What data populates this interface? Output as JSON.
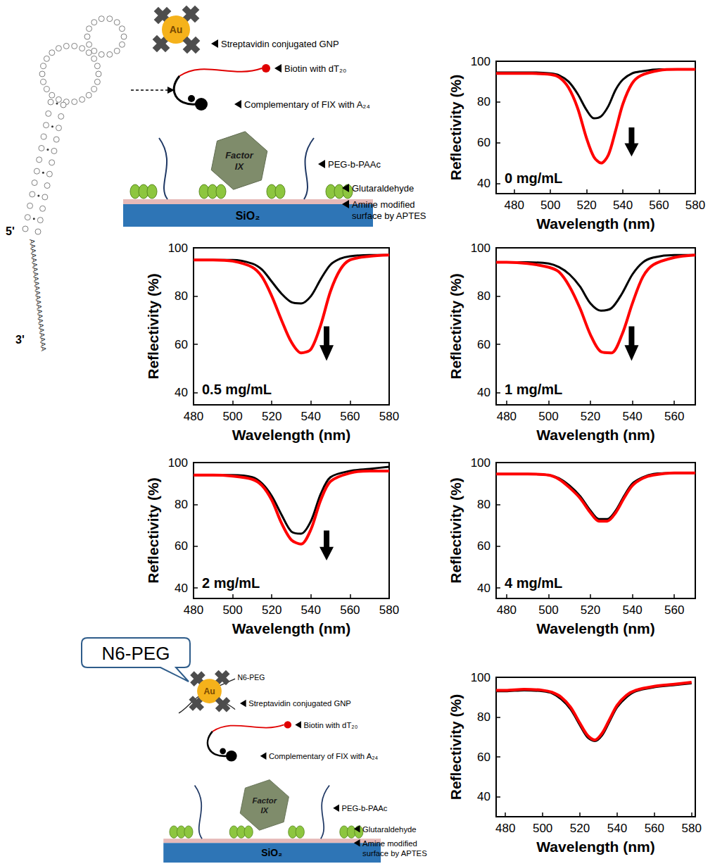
{
  "chart_data": [
    {
      "type": "line",
      "annotation": "0 mg/mL",
      "x_label": "Wavelength (nm)",
      "y_label": "Reflectivity (%)",
      "x": [
        470,
        480,
        490,
        500,
        505,
        510,
        515,
        520,
        524,
        528,
        532,
        536,
        540,
        545,
        550,
        560,
        570,
        580
      ],
      "series": [
        {
          "color": "#000000",
          "values": [
            94.5,
            94.5,
            94.5,
            94,
            93,
            90,
            84,
            76,
            72,
            73,
            78,
            86,
            91,
            94,
            95,
            96,
            96,
            96
          ]
        },
        {
          "color": "#ff0000",
          "values": [
            94,
            94,
            94,
            93.5,
            92,
            87,
            77,
            62,
            53,
            50,
            54,
            66,
            79,
            89,
            93,
            95.5,
            96,
            96
          ]
        }
      ],
      "xlim": [
        470,
        580
      ],
      "xticks": [
        480,
        500,
        520,
        540,
        560,
        580
      ],
      "ylim": [
        35,
        100
      ],
      "yticks": [
        40,
        60,
        80,
        100
      ],
      "grid": false
    },
    {
      "type": "line",
      "annotation": "0.5 mg/mL",
      "x_label": "Wavelength (nm)",
      "y_label": "Reflectivity (%)",
      "x": [
        480,
        490,
        500,
        510,
        515,
        520,
        525,
        530,
        535,
        540,
        545,
        550,
        555,
        560,
        570,
        580
      ],
      "series": [
        {
          "color": "#000000",
          "values": [
            95,
            95,
            95,
            93.5,
            91,
            86,
            81,
            77.5,
            77,
            80,
            87,
            93,
            95.5,
            96.5,
            97,
            97
          ]
        },
        {
          "color": "#ff0000",
          "values": [
            95,
            95,
            94.5,
            92,
            88,
            80,
            70,
            61,
            56.5,
            58,
            68,
            82,
            91,
            95,
            96.5,
            97
          ]
        }
      ],
      "xlim": [
        480,
        580
      ],
      "xticks": [
        480,
        500,
        520,
        540,
        560,
        580
      ],
      "ylim": [
        35,
        100
      ],
      "yticks": [
        40,
        60,
        80,
        100
      ],
      "grid": false
    },
    {
      "type": "line",
      "annotation": "1 mg/mL",
      "x_label": "Wavelength (nm)",
      "y_label": "Reflectivity (%)",
      "x": [
        475,
        480,
        490,
        500,
        505,
        510,
        515,
        520,
        525,
        530,
        535,
        540,
        545,
        550,
        560,
        570
      ],
      "series": [
        {
          "color": "#000000",
          "values": [
            94,
            94,
            94,
            93.5,
            92,
            89,
            84,
            77,
            74,
            75,
            81,
            89,
            94,
            96,
            97,
            97
          ]
        },
        {
          "color": "#ff0000",
          "values": [
            94,
            94,
            93.5,
            92,
            90,
            84,
            75,
            64,
            57,
            56.5,
            64,
            77,
            88,
            93,
            96,
            97
          ]
        }
      ],
      "xlim": [
        475,
        570
      ],
      "xticks": [
        480,
        500,
        520,
        540,
        560
      ],
      "ylim": [
        35,
        100
      ],
      "yticks": [
        40,
        60,
        80,
        100
      ],
      "grid": false
    },
    {
      "type": "line",
      "annotation": "2 mg/mL",
      "x_label": "Wavelength (nm)",
      "y_label": "Reflectivity (%)",
      "x": [
        480,
        490,
        500,
        510,
        515,
        520,
        525,
        530,
        535,
        540,
        545,
        550,
        560,
        570,
        580
      ],
      "series": [
        {
          "color": "#000000",
          "values": [
            94,
            94,
            94,
            93,
            90,
            84,
            75,
            67,
            66,
            72,
            85,
            93,
            96,
            97,
            98
          ]
        },
        {
          "color": "#ff0000",
          "values": [
            94,
            94,
            93.5,
            92,
            89,
            82,
            71,
            63,
            61,
            68,
            82,
            91,
            95,
            96,
            96
          ]
        }
      ],
      "xlim": [
        480,
        580
      ],
      "xticks": [
        480,
        500,
        520,
        540,
        560,
        580
      ],
      "ylim": [
        35,
        100
      ],
      "yticks": [
        40,
        60,
        80,
        100
      ],
      "grid": false
    },
    {
      "type": "line",
      "annotation": "4 mg/mL",
      "x_label": "Wavelength (nm)",
      "y_label": "Reflectivity (%)",
      "x": [
        475,
        480,
        490,
        500,
        505,
        510,
        515,
        520,
        524,
        528,
        532,
        536,
        540,
        545,
        550,
        560,
        570
      ],
      "series": [
        {
          "color": "#000000",
          "values": [
            94.5,
            94.5,
            94.5,
            94,
            92.5,
            89,
            84,
            77,
            73,
            73,
            77,
            84,
            90,
            93,
            94.5,
            95,
            95
          ]
        },
        {
          "color": "#ff0000",
          "values": [
            94.5,
            94.5,
            94.5,
            94,
            92,
            88,
            83,
            76,
            72,
            72,
            76,
            83,
            89,
            92.5,
            94,
            95,
            95
          ]
        }
      ],
      "xlim": [
        475,
        570
      ],
      "xticks": [
        480,
        500,
        520,
        540,
        560
      ],
      "ylim": [
        35,
        100
      ],
      "yticks": [
        40,
        60,
        80,
        100
      ],
      "grid": false
    },
    {
      "type": "line",
      "x_label": "Wavelength (nm)",
      "y_label": "Reflectivity (%)",
      "x": [
        475,
        480,
        490,
        500,
        505,
        510,
        515,
        520,
        524,
        528,
        532,
        536,
        540,
        545,
        550,
        560,
        570,
        580
      ],
      "series": [
        {
          "color": "#000000",
          "values": [
            93,
            93,
            93.5,
            93,
            92,
            89,
            84,
            76,
            70,
            68,
            71,
            78,
            85,
            90,
            93,
            95,
            96,
            97
          ]
        },
        {
          "color": "#ff0000",
          "values": [
            93.5,
            93.5,
            94,
            93.5,
            92.5,
            90,
            85,
            77,
            71,
            68.5,
            72,
            79,
            86,
            91,
            93.5,
            95.5,
            96.5,
            97.5
          ]
        }
      ],
      "xlim": [
        475,
        582
      ],
      "xticks": [
        480,
        500,
        520,
        540,
        560,
        580
      ],
      "ylim": [
        30,
        100
      ],
      "yticks": [
        40,
        60,
        80,
        100
      ],
      "grid": false
    }
  ],
  "diagram": {
    "aptamer": {
      "five_prime": "5'",
      "three_prime": "3'",
      "tail": "AAAAAAAAAAAAAAAAAAAAAAAA"
    },
    "top_schematic": {
      "gnp": "Au",
      "labels": {
        "gnp": "Streptavidin conjugated GNP",
        "biotin": "Biotin with dT₂₀",
        "complementary": "Complementary of FIX with A₂₄",
        "peg": "PEG-b-PAAc",
        "glutaraldehyde": "Glutaraldehyde",
        "surface": "Amine modified surface by APTES"
      },
      "protein": "Factor IX",
      "substrate": "SiO₂"
    },
    "bottom_schematic": {
      "callout": "N6-PEG",
      "peg_label": "N6-PEG",
      "gnp": "Au",
      "labels": {
        "gnp": "Streptavidin conjugated GNP",
        "biotin": "Biotin with dT₂₀",
        "complementary": "Complementary of FIX with A₂₄",
        "peg": "PEG-b-PAAc",
        "glutaraldehyde": "Glutaraldehyde",
        "surface": "Amine modified surface by APTES"
      },
      "protein": "Factor IX",
      "substrate": "SiO₂"
    }
  }
}
